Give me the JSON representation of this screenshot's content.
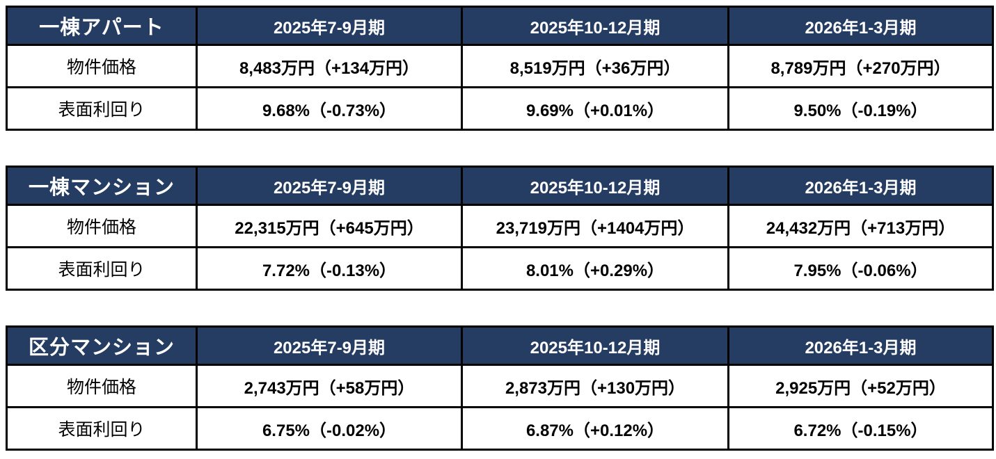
{
  "colors": {
    "header_bg": "#253C63",
    "header_text": "#FFFFFF",
    "border": "#000000",
    "cell_bg": "#FFFFFF",
    "cell_text": "#000000",
    "page_bg": "#FFFFFF"
  },
  "chart_data": [
    {
      "type": "table",
      "title": "一棟アパート",
      "columns": [
        "2025年7-9月期",
        "2025年10-12月期",
        "2026年1-3月期"
      ],
      "rows": [
        {
          "label": "物件価格",
          "values": [
            "8,483万円（+134万円）",
            "8,519万円（+36万円）",
            "8,789万円（+270万円）"
          ],
          "numeric": {
            "amounts_man_yen": [
              8483,
              8519,
              8789
            ],
            "changes_man_yen": [
              134,
              36,
              270
            ]
          }
        },
        {
          "label": "表面利回り",
          "values": [
            "9.68%（-0.73%）",
            "9.69%（+0.01%）",
            "9.50%（-0.19%）"
          ],
          "numeric": {
            "yields_pct": [
              9.68,
              9.69,
              9.5
            ],
            "changes_pct": [
              -0.73,
              0.01,
              -0.19
            ]
          }
        }
      ]
    },
    {
      "type": "table",
      "title": "一棟マンション",
      "columns": [
        "2025年7-9月期",
        "2025年10-12月期",
        "2026年1-3月期"
      ],
      "rows": [
        {
          "label": "物件価格",
          "values": [
            "22,315万円（+645万円）",
            "23,719万円（+1404万円）",
            "24,432万円（+713万円）"
          ],
          "numeric": {
            "amounts_man_yen": [
              22315,
              23719,
              24432
            ],
            "changes_man_yen": [
              645,
              1404,
              713
            ]
          }
        },
        {
          "label": "表面利回り",
          "values": [
            "7.72%（-0.13%）",
            "8.01%（+0.29%）",
            "7.95%（-0.06%）"
          ],
          "numeric": {
            "yields_pct": [
              7.72,
              8.01,
              7.95
            ],
            "changes_pct": [
              -0.13,
              0.29,
              -0.06
            ]
          }
        }
      ]
    },
    {
      "type": "table",
      "title": "区分マンション",
      "columns": [
        "2025年7-9月期",
        "2025年10-12月期",
        "2026年1-3月期"
      ],
      "rows": [
        {
          "label": "物件価格",
          "values": [
            "2,743万円（+58万円）",
            "2,873万円（+130万円）",
            "2,925万円（+52万円）"
          ],
          "numeric": {
            "amounts_man_yen": [
              2743,
              2873,
              2925
            ],
            "changes_man_yen": [
              58,
              130,
              52
            ]
          }
        },
        {
          "label": "表面利回り",
          "values": [
            "6.75%（-0.02%）",
            "6.87%（+0.12%）",
            "6.72%（-0.15%）"
          ],
          "numeric": {
            "yields_pct": [
              6.75,
              6.87,
              6.72
            ],
            "changes_pct": [
              -0.02,
              0.12,
              -0.15
            ]
          }
        }
      ]
    }
  ]
}
